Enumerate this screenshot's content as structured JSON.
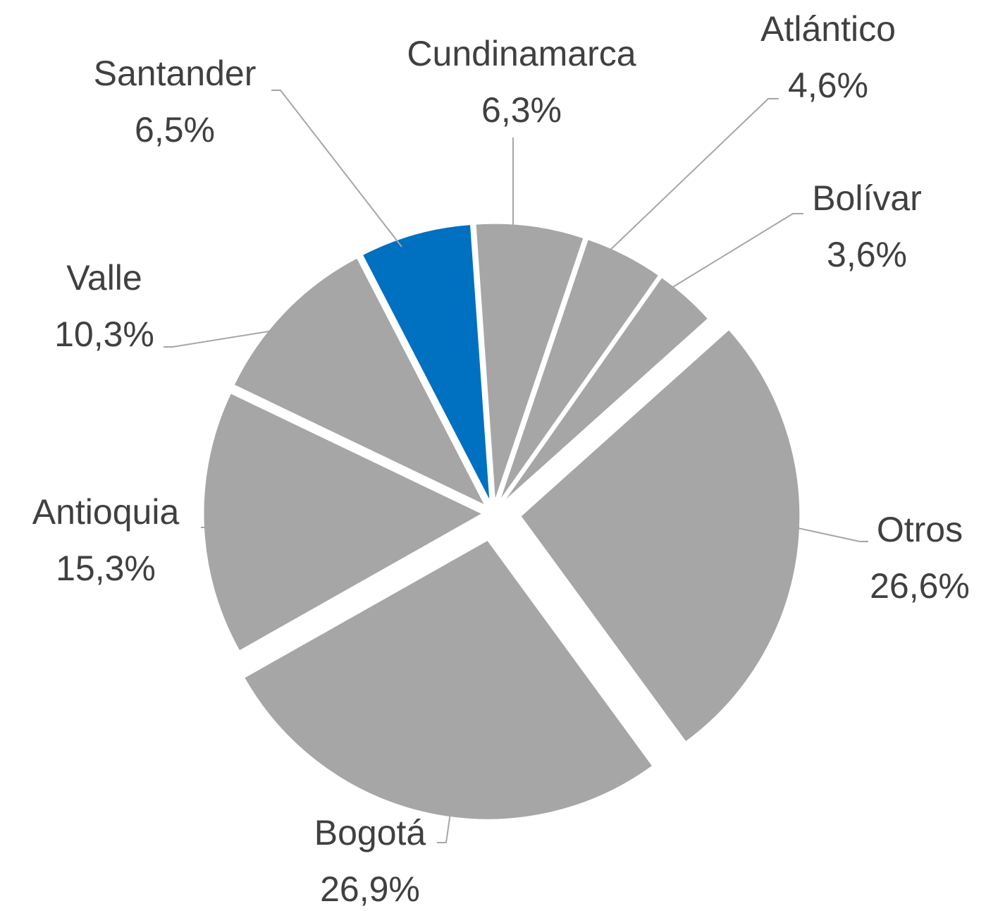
{
  "chart_data": {
    "type": "pie",
    "categories": [
      "Cundinamarca",
      "Atlántico",
      "Bolívar",
      "Otros",
      "Bogotá",
      "Antioquia",
      "Valle",
      "Santander"
    ],
    "values": [
      6.3,
      4.6,
      3.6,
      26.6,
      26.9,
      15.3,
      10.3,
      6.5
    ],
    "value_labels": [
      "6,3%",
      "4,6%",
      "3,6%",
      "26,6%",
      "26,9%",
      "15,3%",
      "10,3%",
      "6,5%"
    ],
    "colors": [
      "#a6a6a6",
      "#a6a6a6",
      "#a6a6a6",
      "#a6a6a6",
      "#a6a6a6",
      "#a6a6a6",
      "#a6a6a6",
      "#0070c0"
    ]
  }
}
